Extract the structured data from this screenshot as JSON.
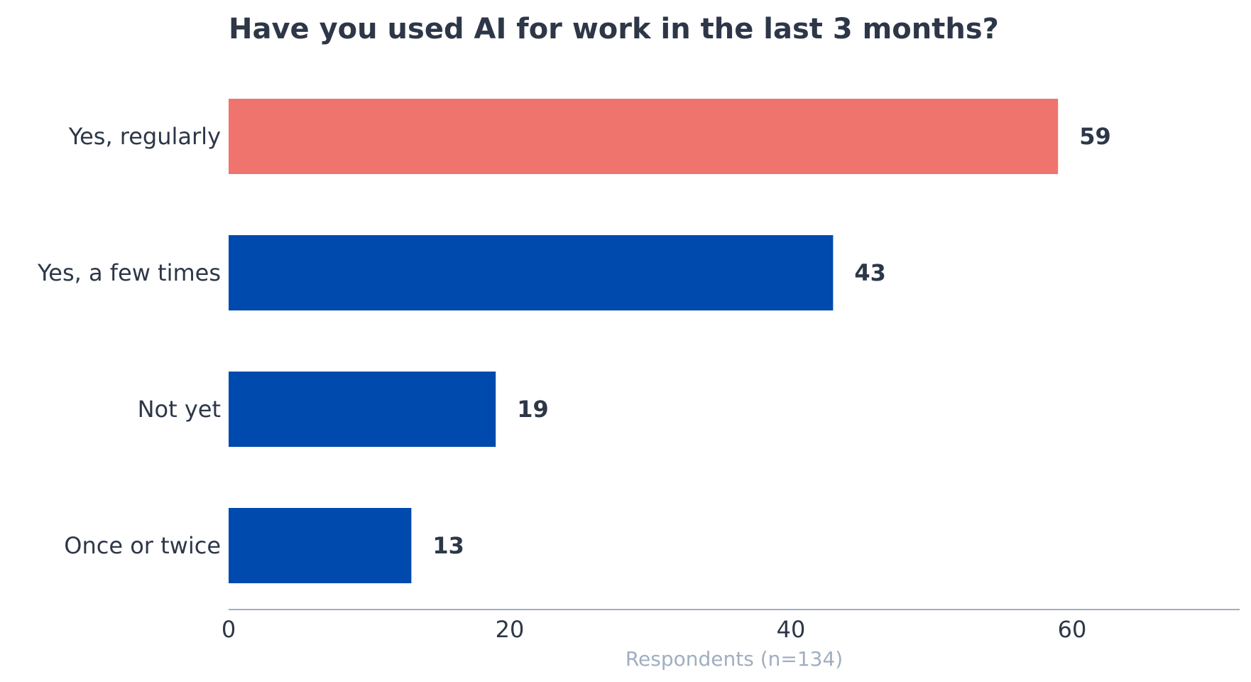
{
  "chart_data": {
    "type": "bar",
    "orientation": "horizontal",
    "title": "Have you used AI for work in the last 3 months?",
    "xlabel": "Respondents (n=134)",
    "ylabel": "",
    "categories": [
      "Yes, regularly",
      "Yes, a few times",
      "Not yet",
      "Once or twice"
    ],
    "values": [
      59,
      43,
      19,
      13
    ],
    "value_labels": [
      "59",
      "43",
      "19",
      "13"
    ],
    "xlim": [
      0,
      72
    ],
    "xticks": [
      0,
      20,
      40,
      60
    ],
    "xtick_labels": [
      "0",
      "20",
      "40",
      "60"
    ],
    "highlight_index": 0,
    "grid": false,
    "legend": "none",
    "colors": {
      "highlight": "#ef746d",
      "bar": "#004aad",
      "text": "#2d3748",
      "axis_line": "#a0aec0",
      "axis_title": "#a0aec0"
    }
  }
}
